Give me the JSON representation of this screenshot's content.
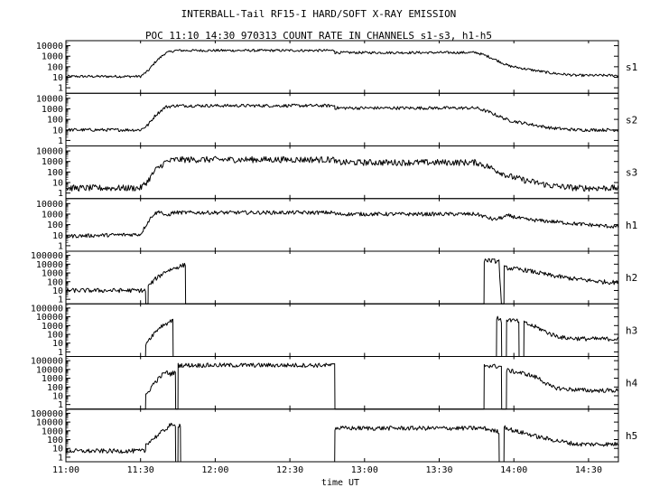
{
  "figure": {
    "title_line1": "INTERBALL-Tail RF15-I HARD/SOFT X-RAY EMISSION",
    "title_line2": "POC 11:10 14:30 970313  COUNT RATE IN CHANNELS s1-s3, h1-h5"
  },
  "chart_data": {
    "type": "line",
    "title": "INTERBALL-Tail RF15-I HARD/SOFT X-RAY EMISSION",
    "subtitle": "POC 11:10 14:30 970313  COUNT RATE IN CHANNELS s1-s3, h1-h5",
    "xlabel": "time UT",
    "x_unit": "minutes after 11:00 UT",
    "x_range": [
      0,
      222
    ],
    "x_ticks": [
      0,
      30,
      60,
      90,
      120,
      150,
      180,
      210
    ],
    "x_tick_labels": [
      "11:00",
      "11:30",
      "12:00",
      "12:30",
      "13:00",
      "13:30",
      "14:00",
      "14:30"
    ],
    "yscale": "log",
    "grid": false,
    "panels": [
      {
        "name": "s1",
        "y_ticks": [
          1,
          10,
          100,
          1000,
          10000
        ],
        "y_tick_labels": [
          "1",
          "10",
          "100",
          "1000",
          "10000"
        ],
        "ylim": [
          0.3,
          30000
        ],
        "noise": 0.12,
        "points": [
          [
            0,
            12
          ],
          [
            30,
            12
          ],
          [
            33,
            40
          ],
          [
            36,
            300
          ],
          [
            40,
            2000
          ],
          [
            44,
            3500
          ],
          [
            108,
            3500
          ],
          [
            108.1,
            2200
          ],
          [
            165,
            2200
          ],
          [
            170,
            900
          ],
          [
            178,
            120
          ],
          [
            185,
            60
          ],
          [
            195,
            25
          ],
          [
            205,
            15
          ],
          [
            222,
            15
          ]
        ]
      },
      {
        "name": "s2",
        "y_ticks": [
          1,
          10,
          100,
          1000,
          10000
        ],
        "y_tick_labels": [
          "1",
          "10",
          "100",
          "1000",
          "10000"
        ],
        "ylim": [
          0.3,
          30000
        ],
        "noise": 0.15,
        "points": [
          [
            0,
            10
          ],
          [
            30,
            10
          ],
          [
            33,
            30
          ],
          [
            36,
            250
          ],
          [
            40,
            1500
          ],
          [
            44,
            2000
          ],
          [
            108,
            2000
          ],
          [
            108.1,
            1200
          ],
          [
            165,
            1200
          ],
          [
            170,
            500
          ],
          [
            178,
            80
          ],
          [
            185,
            40
          ],
          [
            195,
            15
          ],
          [
            205,
            10
          ],
          [
            222,
            10
          ]
        ]
      },
      {
        "name": "s3",
        "y_ticks": [
          1,
          10,
          100,
          1000,
          10000
        ],
        "y_tick_labels": [
          "1",
          "10",
          "100",
          "1000",
          "10000"
        ],
        "ylim": [
          0.3,
          30000
        ],
        "noise": 0.3,
        "points": [
          [
            0,
            3
          ],
          [
            30,
            3
          ],
          [
            33,
            15
          ],
          [
            36,
            150
          ],
          [
            40,
            900
          ],
          [
            44,
            1500
          ],
          [
            108,
            1500
          ],
          [
            108.1,
            800
          ],
          [
            165,
            800
          ],
          [
            170,
            300
          ],
          [
            178,
            40
          ],
          [
            185,
            15
          ],
          [
            195,
            5
          ],
          [
            205,
            3
          ],
          [
            222,
            3
          ]
        ]
      },
      {
        "name": "h1",
        "y_ticks": [
          1,
          10,
          100,
          1000,
          10000
        ],
        "y_tick_labels": [
          "1",
          "10",
          "100",
          "1000",
          "10000"
        ],
        "ylim": [
          0.3,
          30000
        ],
        "noise": 0.18,
        "points": [
          [
            0,
            8
          ],
          [
            30,
            12
          ],
          [
            32,
            80
          ],
          [
            35,
            900
          ],
          [
            38,
            2000
          ],
          [
            40,
            600
          ],
          [
            43,
            1400
          ],
          [
            108,
            1400
          ],
          [
            108.1,
            1000
          ],
          [
            165,
            1000
          ],
          [
            168,
            600
          ],
          [
            172,
            300
          ],
          [
            178,
            700
          ],
          [
            185,
            300
          ],
          [
            195,
            200
          ],
          [
            205,
            120
          ],
          [
            215,
            80
          ],
          [
            222,
            60
          ]
        ]
      },
      {
        "name": "h2",
        "y_ticks": [
          1,
          10,
          100,
          1000,
          10000,
          100000
        ],
        "y_tick_labels": [
          "1",
          "10",
          "100",
          "1000",
          "10000",
          "100000"
        ],
        "ylim": [
          0.3,
          300000
        ],
        "noise": 0.25,
        "points": [
          [
            0,
            10
          ],
          [
            32,
            10
          ],
          [
            32.1,
            0.3
          ],
          [
            33,
            0.3
          ],
          [
            33.1,
            30
          ],
          [
            36,
            200
          ],
          [
            40,
            1500
          ],
          [
            43,
            3000
          ],
          [
            46,
            6000
          ],
          [
            48,
            8000
          ],
          [
            48.1,
            0.3
          ],
          [
            168,
            0.3
          ],
          [
            168.1,
            30000
          ],
          [
            174,
            20000
          ],
          [
            175,
            0.3
          ],
          [
            176,
            0.3
          ],
          [
            176.1,
            4000
          ],
          [
            185,
            2000
          ],
          [
            195,
            500
          ],
          [
            205,
            200
          ],
          [
            215,
            100
          ],
          [
            222,
            80
          ]
        ]
      },
      {
        "name": "h3",
        "y_ticks": [
          1,
          10,
          100,
          1000,
          10000,
          100000
        ],
        "y_tick_labels": [
          "1",
          "10",
          "100",
          "1000",
          "10000",
          "100000"
        ],
        "ylim": [
          0.3,
          300000
        ],
        "noise": 0.25,
        "points": [
          [
            0,
            0.3
          ],
          [
            32,
            0.3
          ],
          [
            32.1,
            10
          ],
          [
            35,
            100
          ],
          [
            38,
            800
          ],
          [
            42,
            3000
          ],
          [
            43,
            6000
          ],
          [
            43.1,
            0.3
          ],
          [
            173,
            0.3
          ],
          [
            173.1,
            8000
          ],
          [
            175,
            3000
          ],
          [
            175.1,
            0.3
          ],
          [
            177,
            0.3
          ],
          [
            177.1,
            5000
          ],
          [
            182,
            3000
          ],
          [
            182.1,
            0.3
          ],
          [
            184,
            0.3
          ],
          [
            184.1,
            2000
          ],
          [
            190,
            500
          ],
          [
            195,
            100
          ],
          [
            200,
            40
          ],
          [
            210,
            30
          ],
          [
            222,
            30
          ]
        ]
      },
      {
        "name": "h4",
        "y_ticks": [
          1,
          10,
          100,
          1000,
          10000,
          100000
        ],
        "y_tick_labels": [
          "1",
          "10",
          "100",
          "1000",
          "10000",
          "100000"
        ],
        "ylim": [
          0.3,
          300000
        ],
        "noise": 0.25,
        "points": [
          [
            0,
            0.3
          ],
          [
            32,
            0.3
          ],
          [
            32.1,
            10
          ],
          [
            35,
            200
          ],
          [
            38,
            1500
          ],
          [
            40,
            5000
          ],
          [
            42,
            3000
          ],
          [
            44,
            5000
          ],
          [
            44.1,
            0.3
          ],
          [
            45,
            0.3
          ],
          [
            45.1,
            30000
          ],
          [
            108,
            30000
          ],
          [
            108.1,
            0.3
          ],
          [
            168,
            0.3
          ],
          [
            168.1,
            30000
          ],
          [
            175,
            20000
          ],
          [
            175.1,
            0.3
          ],
          [
            177,
            0.3
          ],
          [
            177.1,
            8000
          ],
          [
            185,
            3000
          ],
          [
            190,
            1000
          ],
          [
            195,
            100
          ],
          [
            200,
            60
          ],
          [
            210,
            40
          ],
          [
            222,
            40
          ]
        ]
      },
      {
        "name": "h5",
        "y_ticks": [
          1,
          10,
          100,
          1000,
          10000,
          100000
        ],
        "y_tick_labels": [
          "1",
          "10",
          "100",
          "1000",
          "10000",
          "100000"
        ],
        "ylim": [
          0.3,
          300000
        ],
        "noise": 0.25,
        "points": [
          [
            0,
            5
          ],
          [
            32,
            5
          ],
          [
            32.1,
            30
          ],
          [
            36,
            200
          ],
          [
            40,
            1500
          ],
          [
            42,
            5000
          ],
          [
            43,
            3000
          ],
          [
            44,
            5000
          ],
          [
            44.1,
            0.3
          ],
          [
            45,
            0.3
          ],
          [
            45.1,
            4000
          ],
          [
            46,
            5000
          ],
          [
            46.1,
            0.3
          ],
          [
            108,
            0.3
          ],
          [
            108.1,
            2000
          ],
          [
            168,
            2000
          ],
          [
            172,
            1000
          ],
          [
            174,
            800
          ],
          [
            174.1,
            0.3
          ],
          [
            176,
            0.3
          ],
          [
            176.1,
            3000
          ],
          [
            180,
            1000
          ],
          [
            185,
            500
          ],
          [
            190,
            200
          ],
          [
            195,
            100
          ],
          [
            205,
            30
          ],
          [
            222,
            30
          ]
        ]
      }
    ]
  }
}
